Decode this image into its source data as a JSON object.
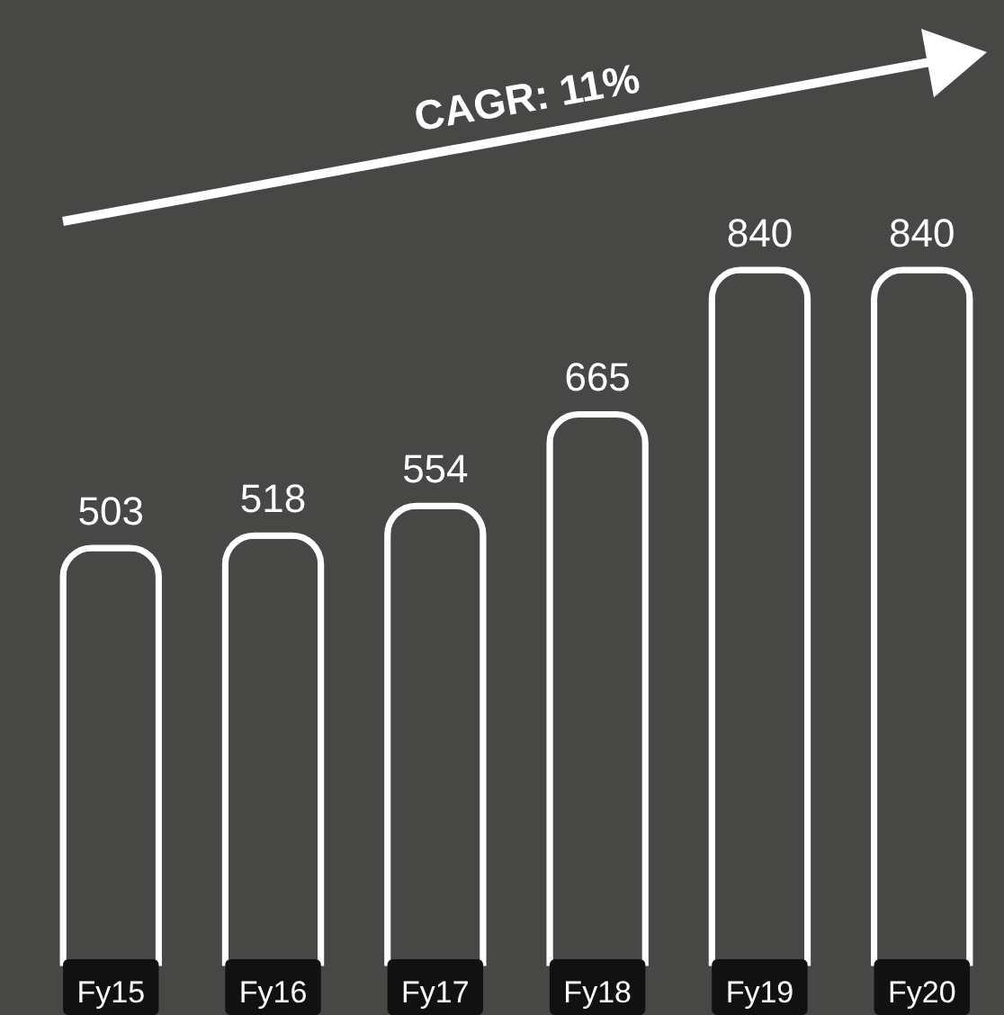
{
  "chart_data": {
    "type": "bar",
    "categories": [
      "Fy15",
      "Fy16",
      "Fy17",
      "Fy18",
      "Fy19",
      "Fy20"
    ],
    "values": [
      503,
      518,
      554,
      665,
      840,
      840
    ],
    "color": "#ffffff",
    "data_labels": true,
    "annotations": [
      "CAGR: 11%"
    ]
  }
}
